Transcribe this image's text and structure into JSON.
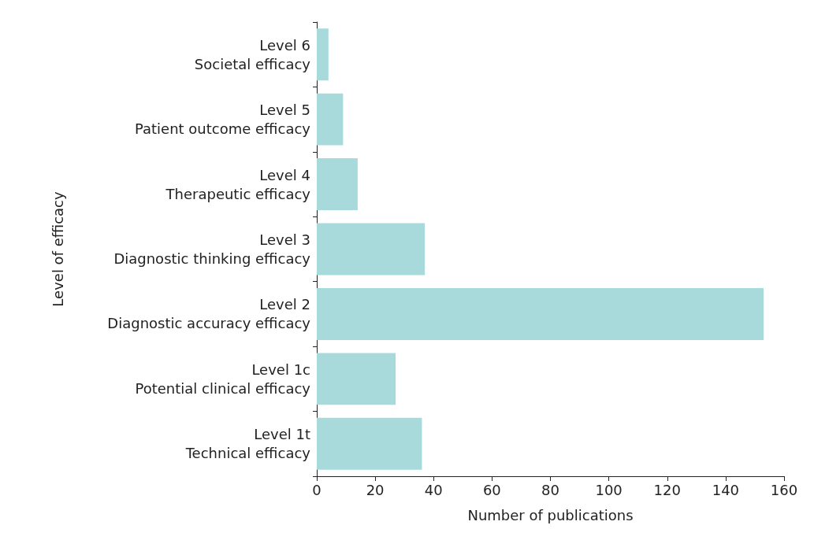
{
  "chart_data": {
    "type": "bar",
    "orientation": "horizontal",
    "xlabel": "Number of publications",
    "ylabel": "Level of efficacy",
    "categories": [
      "Level 6\nSocietal efficacy",
      "Level 5\nPatient outcome efficacy",
      "Level 4\nTherapeutic efficacy",
      "Level 3\nDiagnostic thinking efficacy",
      "Level 2\nDiagnostic accuracy efficacy",
      "Level 1c\nPotential clinical efficacy",
      "Level 1t\nTechnical efficacy"
    ],
    "values": [
      4,
      9,
      14,
      37,
      153,
      27,
      36
    ],
    "color": "#a8dadc",
    "xlim": [
      0,
      160
    ],
    "xticks": [
      0,
      20,
      40,
      60,
      80,
      100,
      120,
      140,
      160
    ],
    "grid": false
  }
}
